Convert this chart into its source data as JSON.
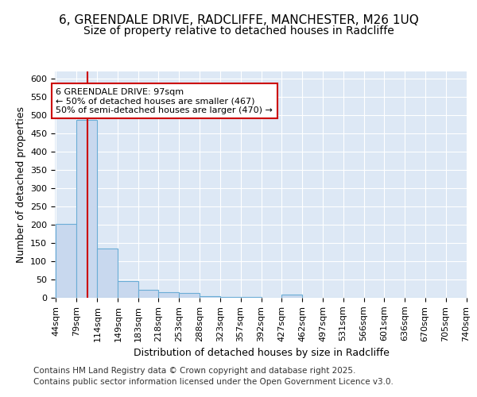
{
  "title": "6, GREENDALE DRIVE, RADCLIFFE, MANCHESTER, M26 1UQ",
  "subtitle": "Size of property relative to detached houses in Radcliffe",
  "xlabel": "Distribution of detached houses by size in Radcliffe",
  "ylabel": "Number of detached properties",
  "bin_edges": [
    44,
    79,
    114,
    149,
    183,
    218,
    253,
    288,
    323,
    357,
    392,
    427,
    462,
    497,
    531,
    566,
    601,
    636,
    670,
    705,
    740
  ],
  "bar_heights": [
    203,
    487,
    135,
    45,
    22,
    15,
    12,
    5,
    3,
    3,
    0,
    8,
    0,
    0,
    0,
    0,
    0,
    0,
    0,
    0
  ],
  "bar_color": "#c8d8ee",
  "bar_edgecolor": "#6badd6",
  "bar_linewidth": 0.8,
  "vline_x": 97,
  "vline_color": "#cc0000",
  "vline_linewidth": 1.5,
  "annotation_text": "6 GREENDALE DRIVE: 97sqm\n← 50% of detached houses are smaller (467)\n50% of semi-detached houses are larger (470) →",
  "annotation_box_color": "#cc0000",
  "annotation_text_color": "#000000",
  "annotation_fontsize": 8,
  "ylim": [
    0,
    620
  ],
  "yticks": [
    0,
    50,
    100,
    150,
    200,
    250,
    300,
    350,
    400,
    450,
    500,
    550,
    600
  ],
  "background_color": "#ffffff",
  "plot_bg_color": "#dde8f5",
  "grid_color": "#ffffff",
  "title_fontsize": 11,
  "subtitle_fontsize": 10,
  "xlabel_fontsize": 9,
  "ylabel_fontsize": 9,
  "tick_fontsize": 8,
  "footer_line1": "Contains HM Land Registry data © Crown copyright and database right 2025.",
  "footer_line2": "Contains public sector information licensed under the Open Government Licence v3.0.",
  "footer_fontsize": 7.5
}
